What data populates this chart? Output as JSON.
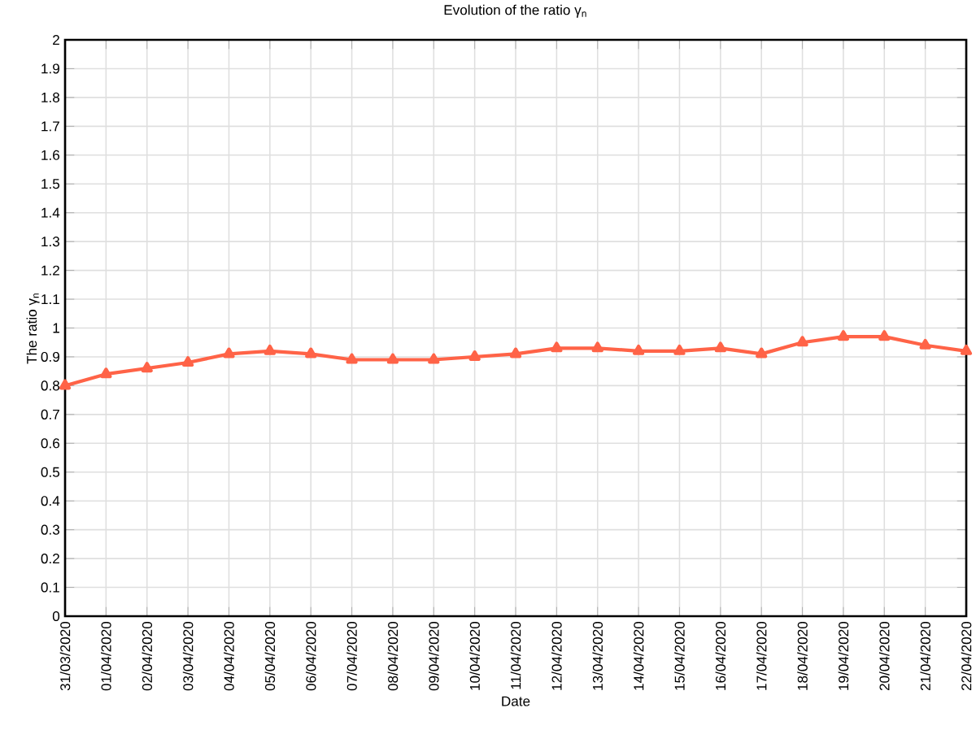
{
  "chart_data": {
    "type": "line",
    "title": "Evolution of the ratio  γ$_{n}$",
    "xlabel": "Date",
    "ylabel": "The ratio  γ$_{n}$",
    "categories": [
      "31/03/2020",
      "01/04/2020",
      "02/04/2020",
      "03/04/2020",
      "04/04/2020",
      "05/04/2020",
      "06/04/2020",
      "07/04/2020",
      "08/04/2020",
      "09/04/2020",
      "10/04/2020",
      "11/04/2020",
      "12/04/2020",
      "13/04/2020",
      "14/04/2020",
      "15/04/2020",
      "16/04/2020",
      "17/04/2020",
      "18/04/2020",
      "19/04/2020",
      "20/04/2020",
      "21/04/2020",
      "22/04/2020"
    ],
    "values": [
      0.8,
      0.84,
      0.86,
      0.88,
      0.91,
      0.92,
      0.91,
      0.89,
      0.89,
      0.89,
      0.9,
      0.91,
      0.93,
      0.93,
      0.92,
      0.92,
      0.93,
      0.91,
      0.95,
      0.97,
      0.97,
      0.94,
      0.92
    ],
    "color": "#ff6347",
    "marker": "triangle",
    "line_style": "solid",
    "grid": true,
    "ylim": [
      0,
      2
    ],
    "yticks": [
      0,
      0.1,
      0.2,
      0.3,
      0.4,
      0.5,
      0.6,
      0.7,
      0.8,
      0.9,
      1,
      1.1,
      1.2,
      1.3,
      1.4,
      1.5,
      1.6,
      1.7,
      1.8,
      1.9,
      2
    ]
  }
}
